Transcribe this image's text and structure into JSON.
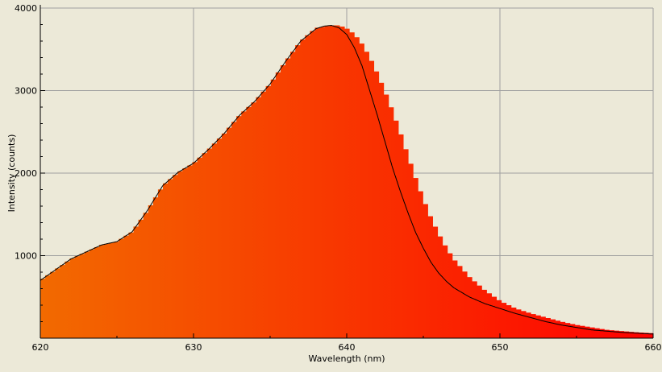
{
  "chart_data": {
    "type": "area",
    "title": "",
    "xlabel": "Wavelength (nm)",
    "ylabel": "Intensity (counts)",
    "xlim": [
      620,
      660
    ],
    "ylim": [
      0,
      4000
    ],
    "x_ticks": [
      620,
      630,
      640,
      650,
      660
    ],
    "y_ticks": [
      1000,
      2000,
      3000,
      4000
    ],
    "grid": true,
    "legend": "none",
    "colors": {
      "start": "#f26a00",
      "end": "#ff0000",
      "curve": "#000000",
      "background": "#ece9d8",
      "grid": "#a0a0a0"
    },
    "series": [
      {
        "type": "histogram",
        "bin_width": 0.32,
        "x": [
          620,
          622,
          624,
          625,
          626,
          627,
          628,
          629,
          630,
          631,
          632,
          633,
          634,
          635,
          636,
          637,
          638,
          639,
          639.5,
          640,
          640.5,
          641,
          641.5,
          642,
          642.5,
          643,
          643.5,
          644,
          644.5,
          645,
          645.5,
          646,
          646.5,
          647,
          648,
          649,
          650,
          651,
          652,
          653,
          654,
          655,
          656,
          657,
          658,
          659,
          660
        ],
        "values": [
          700,
          960,
          1130,
          1170,
          1290,
          1550,
          1850,
          2010,
          2120,
          2290,
          2480,
          2700,
          2870,
          3080,
          3350,
          3600,
          3760,
          3790,
          3790,
          3750,
          3680,
          3560,
          3400,
          3200,
          2980,
          2740,
          2480,
          2200,
          1930,
          1680,
          1450,
          1260,
          1090,
          950,
          740,
          580,
          450,
          360,
          300,
          250,
          200,
          160,
          130,
          100,
          85,
          70,
          60
        ]
      },
      {
        "type": "line",
        "x": [
          620,
          622,
          624,
          625,
          626,
          627,
          628,
          629,
          630,
          631,
          632,
          633,
          634,
          635,
          636,
          637,
          638,
          638.5,
          639,
          639.5,
          640,
          640.5,
          641,
          641.5,
          642,
          642.5,
          643,
          643.5,
          644,
          644.5,
          645,
          645.5,
          646,
          646.5,
          647,
          648,
          649,
          650,
          651,
          652,
          653,
          654,
          655,
          656,
          657,
          658,
          659,
          660
        ],
        "values": [
          700,
          960,
          1130,
          1170,
          1290,
          1550,
          1850,
          2010,
          2120,
          2290,
          2480,
          2700,
          2870,
          3080,
          3350,
          3600,
          3750,
          3780,
          3790,
          3760,
          3680,
          3520,
          3300,
          3000,
          2700,
          2380,
          2060,
          1780,
          1520,
          1280,
          1090,
          920,
          790,
          690,
          610,
          500,
          420,
          360,
          300,
          250,
          200,
          160,
          130,
          100,
          85,
          70,
          60,
          50
        ]
      }
    ]
  }
}
